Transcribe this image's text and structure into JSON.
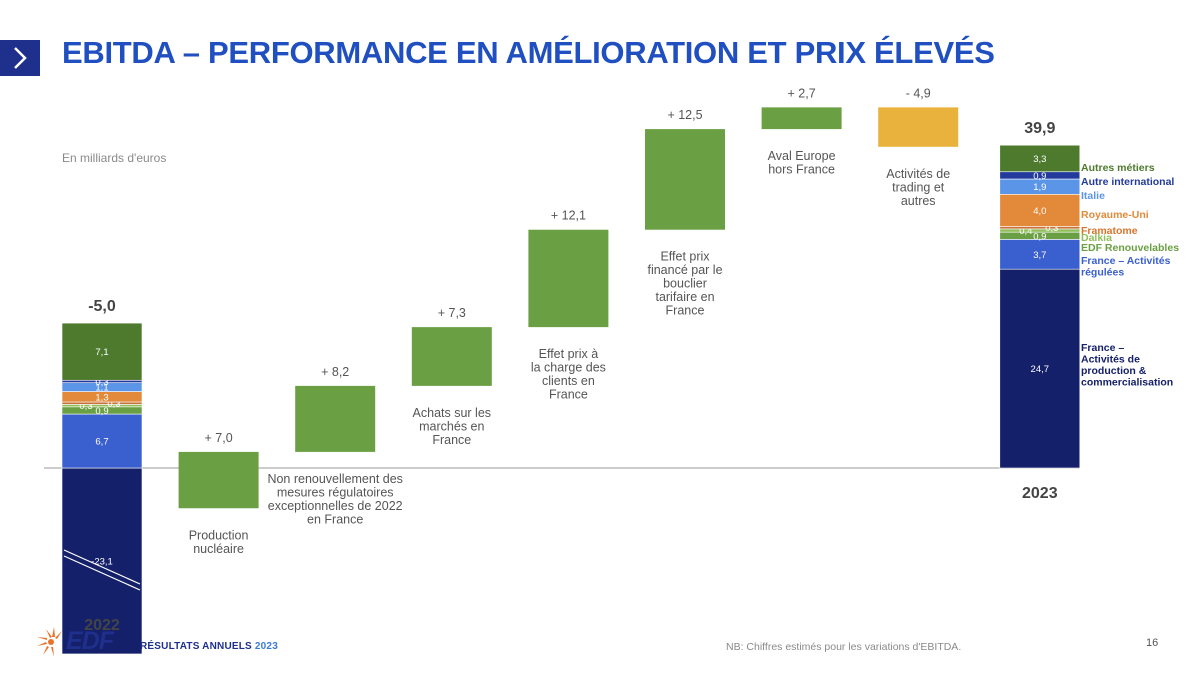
{
  "slide": {
    "title": "EBITDA – PERFORMANCE EN AMÉLIORATION ET PRIX ÉLEVÉS",
    "unit": "En milliards d'euros",
    "footer_brand": "RÉSULTATS ANNUELS",
    "footer_year": "2023",
    "footer_note": "NB: Chiffres estimés pour les variations d'EBITDA.",
    "page_number": "16",
    "logo_text": "EDF",
    "colors": {
      "navy": "#15206b",
      "blue": "#3a5fcf",
      "light_blue": "#5b95e8",
      "orange": "#e38a3a",
      "light_green": "#8fbf5a",
      "green": "#6aa043",
      "dark_green": "#4e7a2e",
      "yellow": "#e8b23c",
      "title_blue": "#1f4fc0"
    }
  },
  "chart_data": {
    "type": "waterfall",
    "title": "",
    "ylim": [
      -23.1,
      39.9
    ],
    "start": {
      "category": "2022",
      "total_label": "-5,0",
      "total": -5.0,
      "segments": [
        {
          "name": "France – Activités de production & commercialisation",
          "value": -23.1,
          "label": "-23,1",
          "color": "#15206b"
        },
        {
          "name": "France – Activités régulées",
          "value": 6.7,
          "label": "6,7",
          "color": "#3a5fcf"
        },
        {
          "name": "EDF Renouvelables",
          "value": 0.9,
          "label": "0,9",
          "color": "#6aa043"
        },
        {
          "name": "Dalkia",
          "value": 0.3,
          "label": "0,3",
          "color": "#8fbf5a"
        },
        {
          "name": "Framatome",
          "value": 0.3,
          "label": "0,3",
          "color": "#c9713a"
        },
        {
          "name": "Royaume-Uni",
          "value": 1.3,
          "label": "1,3",
          "color": "#e38a3a"
        },
        {
          "name": "Italie",
          "value": 1.1,
          "label": "1,1",
          "color": "#5b95e8"
        },
        {
          "name": "Autre international",
          "value": 0.3,
          "label": "0,3",
          "color": "#233a9c"
        },
        {
          "name": "Autres métiers",
          "value": 7.1,
          "label": "7,1",
          "color": "#4e7a2e"
        }
      ]
    },
    "steps": [
      {
        "category": "Production nucléaire",
        "value": 7.0,
        "label": "+ 7,0",
        "color": "#6aa043"
      },
      {
        "category": "Non renouvellement des mesures régulatoires exceptionnelles de 2022 en France",
        "value": 8.2,
        "label": "+ 8,2",
        "color": "#6aa043"
      },
      {
        "category": "Achats sur les marchés en France",
        "value": 7.3,
        "label": "+ 7,3",
        "color": "#6aa043"
      },
      {
        "category": "Effet prix à la charge des clients en France",
        "value": 12.1,
        "label": "+ 12,1",
        "color": "#6aa043"
      },
      {
        "category": "Effet prix financé par le bouclier tarifaire en France",
        "value": 12.5,
        "label": "+ 12,5",
        "color": "#6aa043"
      },
      {
        "category": "Aval Europe hors France",
        "value": 2.7,
        "label": "+ 2,7",
        "color": "#6aa043"
      },
      {
        "category": "Activités de trading et autres",
        "value": -4.9,
        "label": "- 4,9",
        "color": "#e8b23c"
      }
    ],
    "end": {
      "category": "2023",
      "total_label": "39,9",
      "total": 39.9,
      "segments": [
        {
          "name": "France – Activités de production & commercialisation",
          "value": 24.7,
          "label": "24,7",
          "color": "#15206b"
        },
        {
          "name": "France – Activités régulées",
          "value": 3.7,
          "label": "3,7",
          "color": "#3a5fcf"
        },
        {
          "name": "EDF Renouvelables",
          "value": 0.9,
          "label": "0,9",
          "color": "#6aa043"
        },
        {
          "name": "Dalkia",
          "value": 0.4,
          "label": "0,4",
          "color": "#8fbf5a"
        },
        {
          "name": "Framatome",
          "value": 0.3,
          "label": "0,3",
          "color": "#c9713a"
        },
        {
          "name": "Royaume-Uni",
          "value": 4.0,
          "label": "4,0",
          "color": "#e38a3a"
        },
        {
          "name": "Italie",
          "value": 1.9,
          "label": "1,9",
          "color": "#5b95e8"
        },
        {
          "name": "Autre international",
          "value": 0.9,
          "label": "0,9",
          "color": "#233a9c"
        },
        {
          "name": "Autres métiers",
          "value": 3.3,
          "label": "3,3",
          "color": "#4e7a2e"
        }
      ]
    },
    "legend": [
      {
        "name": "Autres métiers",
        "color": "#4e7a2e"
      },
      {
        "name": "Autre international",
        "color": "#233a9c"
      },
      {
        "name": "Italie",
        "color": "#5b95e8"
      },
      {
        "name": "Royaume-Uni",
        "color": "#e38a3a"
      },
      {
        "name": "Framatome",
        "color": "#d9752e"
      },
      {
        "name": "Dalkia",
        "color": "#8fbf5a"
      },
      {
        "name": "EDF Renouvelables",
        "color": "#6aa043"
      },
      {
        "name": "France – Activités régulées",
        "color": "#3a5fcf"
      },
      {
        "name": "France – Activités de production & commercialisation",
        "color": "#15206b"
      }
    ]
  }
}
